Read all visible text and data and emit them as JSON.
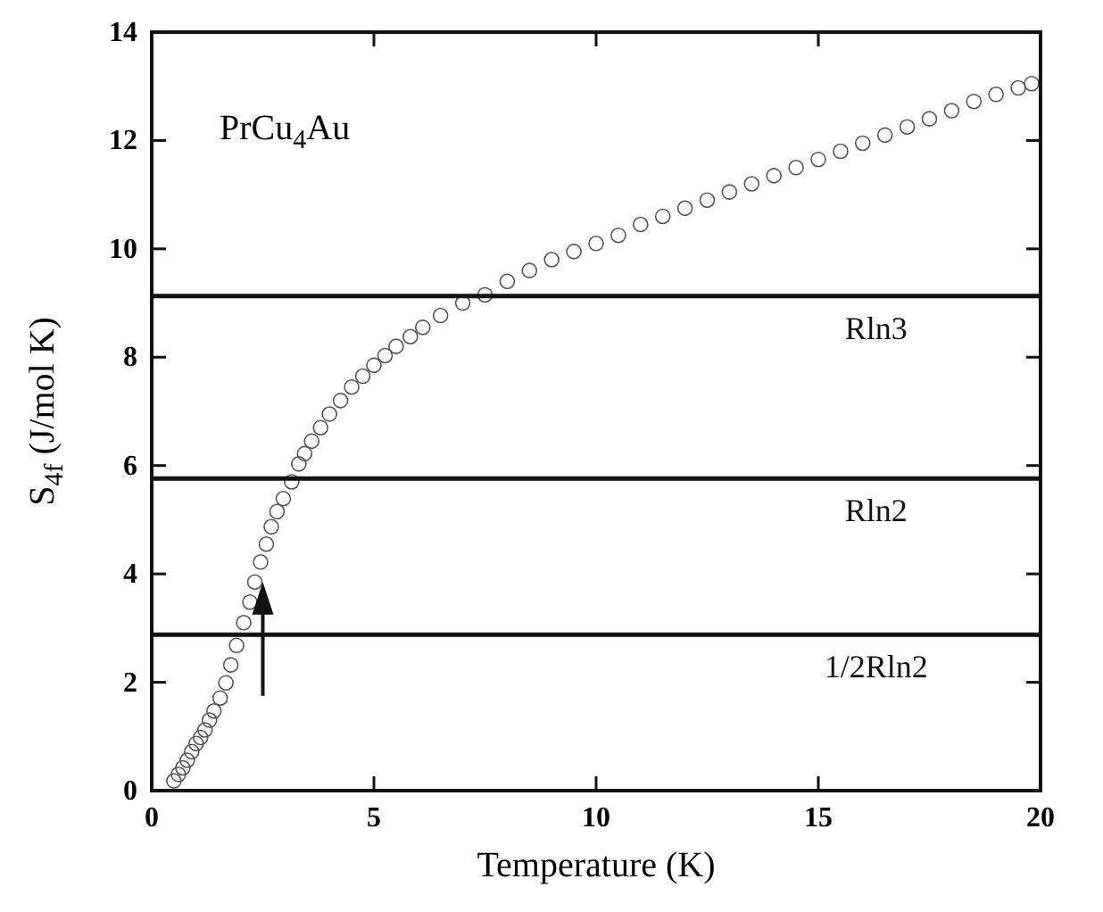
{
  "chart_data": {
    "type": "scatter",
    "xlabel": "Temperature (K)",
    "ylabel": "S$_{4f}$ (J/mol K)",
    "annotations": [
      {
        "text": "PrCu$_{4}$Au"
      }
    ],
    "x": [
      0.5,
      0.6,
      0.7,
      0.8,
      0.9,
      1.0,
      1.1,
      1.2,
      1.3,
      1.4,
      1.54,
      1.67,
      1.78,
      1.91,
      2.07,
      2.21,
      2.32,
      2.45,
      2.58,
      2.69,
      2.82,
      2.96,
      3.15,
      3.31,
      3.44,
      3.6,
      3.8,
      4.0,
      4.25,
      4.5,
      4.75,
      5.0,
      5.25,
      5.5,
      5.82,
      6.1,
      6.5,
      7.0,
      7.5,
      8.0,
      8.5,
      9.0,
      9.5,
      10.0,
      10.5,
      11.0,
      11.5,
      12.0,
      12.5,
      13.0,
      13.5,
      14.0,
      14.5,
      15.0,
      15.5,
      16.0,
      16.5,
      17.0,
      17.5,
      18.0,
      18.5,
      19.0,
      19.5,
      19.8
    ],
    "series": [
      {
        "color": "#555555",
        "values": [
          0.18,
          0.3,
          0.42,
          0.56,
          0.72,
          0.87,
          0.98,
          1.12,
          1.3,
          1.47,
          1.71,
          1.99,
          2.32,
          2.68,
          3.1,
          3.48,
          3.85,
          4.22,
          4.55,
          4.87,
          5.15,
          5.39,
          5.7,
          6.03,
          6.22,
          6.45,
          6.7,
          6.95,
          7.2,
          7.45,
          7.65,
          7.85,
          8.03,
          8.2,
          8.38,
          8.55,
          8.77,
          9.0,
          9.15,
          9.4,
          9.6,
          9.8,
          9.95,
          10.1,
          10.25,
          10.45,
          10.6,
          10.75,
          10.9,
          11.05,
          11.2,
          11.35,
          11.5,
          11.65,
          11.8,
          11.95,
          12.1,
          12.25,
          12.4,
          12.55,
          12.72,
          12.85,
          12.97,
          13.05
        ]
      }
    ],
    "marker": "circle",
    "xlim": [
      0,
      20
    ],
    "ylim": [
      0,
      14
    ],
    "xticks": [
      0,
      5,
      10,
      15,
      20
    ],
    "yticks": [
      0,
      2,
      4,
      6,
      8,
      10,
      12,
      14
    ],
    "grid": false,
    "ref_lines": [
      {
        "axis": "y",
        "value": 9.13,
        "label": "Rln3",
        "color": "#111111"
      },
      {
        "axis": "y",
        "value": 5.76,
        "label": "Rln2",
        "color": "#111111"
      },
      {
        "axis": "y",
        "value": 2.88,
        "label": "1/2Rln2",
        "color": "#111111"
      }
    ]
  }
}
